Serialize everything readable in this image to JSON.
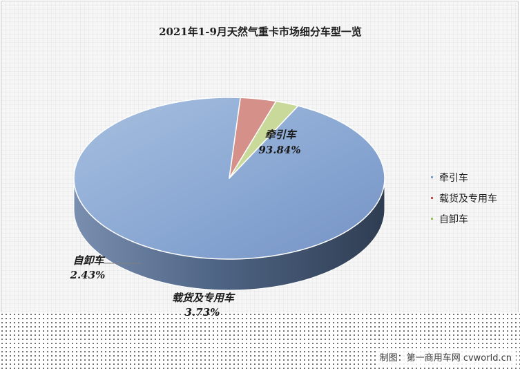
{
  "chart_data": {
    "type": "pie",
    "title": "2021年1-9月天然气重卡市场细分车型一览",
    "categories": [
      "牵引车",
      "载货及专用车",
      "自卸车"
    ],
    "values": [
      93.84,
      3.73,
      2.43
    ],
    "labels": [
      "93.84%",
      "3.73%",
      "2.43%"
    ],
    "legend_position": "right",
    "style": "3d",
    "colors": [
      "#7f9fcb",
      "#c0504d",
      "#9bbb59"
    ]
  },
  "watermark": "制图：第一商用车网 cvworld.cn"
}
